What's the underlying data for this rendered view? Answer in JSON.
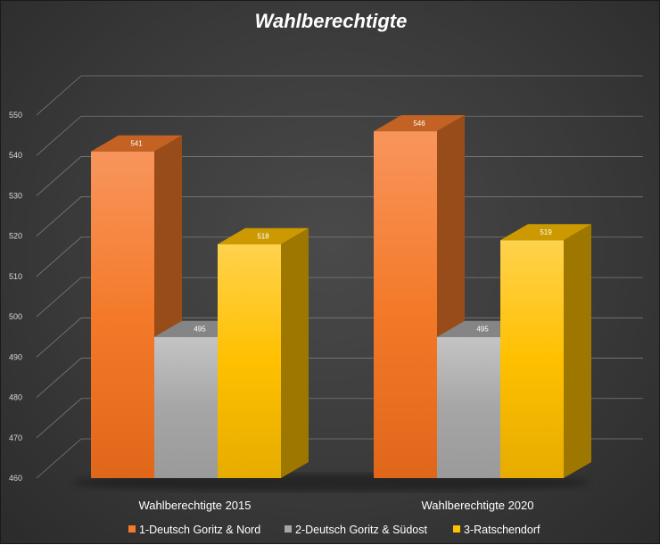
{
  "chart_data": {
    "type": "bar",
    "title": "Wahlberechtigte",
    "categories": [
      "Wahlberechtigte 2015",
      "Wahlberechtigte 2020"
    ],
    "series": [
      {
        "name": "1-Deutsch Goritz & Nord",
        "values": [
          541,
          546
        ],
        "color": "#f47a2a"
      },
      {
        "name": "2-Deutsch Goritz & Südost",
        "values": [
          495,
          495
        ],
        "color": "#a6a6a6"
      },
      {
        "name": "3-Ratschendorf",
        "values": [
          518,
          519
        ],
        "color": "#ffc000"
      }
    ],
    "ylim": [
      460,
      550
    ],
    "yticks": [
      460,
      470,
      480,
      490,
      500,
      510,
      520,
      530,
      540,
      550
    ],
    "grid": true,
    "legend": "bottom",
    "three_d": true
  }
}
